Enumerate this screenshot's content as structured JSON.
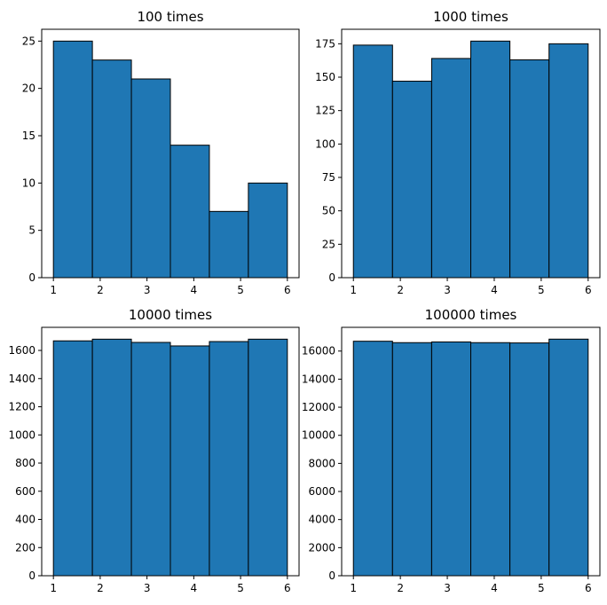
{
  "chart_data": [
    {
      "type": "bar",
      "title": "100 times",
      "bin_edges": [
        1,
        1.8333,
        2.6667,
        3.5,
        4.3333,
        5.1667,
        6
      ],
      "values": [
        25,
        23,
        21,
        14,
        7,
        10
      ],
      "xticks": [
        "1",
        "2",
        "3",
        "4",
        "5",
        "6"
      ],
      "yticks": [
        "0",
        "5",
        "10",
        "15",
        "20",
        "25"
      ],
      "xlim": [
        0.75,
        6.25
      ],
      "ylim": [
        0,
        26.25
      ],
      "color": "#1f77b4",
      "edge_color": "#000000",
      "grid": false
    },
    {
      "type": "bar",
      "title": "1000 times",
      "bin_edges": [
        1,
        1.8333,
        2.6667,
        3.5,
        4.3333,
        5.1667,
        6
      ],
      "values": [
        174,
        147,
        164,
        177,
        163,
        175
      ],
      "xticks": [
        "1",
        "2",
        "3",
        "4",
        "5",
        "6"
      ],
      "yticks": [
        "0",
        "25",
        "50",
        "75",
        "100",
        "125",
        "150",
        "175"
      ],
      "xlim": [
        0.75,
        6.25
      ],
      "ylim": [
        0,
        185.85
      ],
      "color": "#1f77b4",
      "edge_color": "#000000",
      "grid": false
    },
    {
      "type": "bar",
      "title": "10000 times",
      "bin_edges": [
        1,
        1.8333,
        2.6667,
        3.5,
        4.3333,
        5.1667,
        6
      ],
      "values": [
        1668,
        1680,
        1657,
        1632,
        1663,
        1680
      ],
      "xticks": [
        "1",
        "2",
        "3",
        "4",
        "5",
        "6"
      ],
      "yticks": [
        "0",
        "200",
        "400",
        "600",
        "800",
        "1000",
        "1200",
        "1400",
        "1600"
      ],
      "xlim": [
        0.75,
        6.25
      ],
      "ylim": [
        0,
        1764
      ],
      "color": "#1f77b4",
      "edge_color": "#000000",
      "grid": false
    },
    {
      "type": "bar",
      "title": "100000 times",
      "bin_edges": [
        1,
        1.8333,
        2.6667,
        3.5,
        4.3333,
        5.1667,
        6
      ],
      "values": [
        16700,
        16600,
        16650,
        16600,
        16580,
        16850
      ],
      "xticks": [
        "1",
        "2",
        "3",
        "4",
        "5",
        "6"
      ],
      "yticks": [
        "0",
        "2000",
        "4000",
        "6000",
        "8000",
        "10000",
        "12000",
        "14000",
        "16000"
      ],
      "xlim": [
        0.75,
        6.25
      ],
      "ylim": [
        0,
        17690
      ],
      "color": "#1f77b4",
      "edge_color": "#000000",
      "grid": false
    }
  ]
}
